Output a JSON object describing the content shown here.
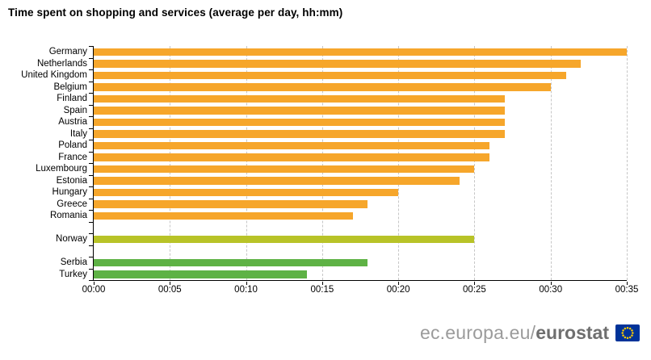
{
  "title": "Time spent on shopping and services (average per day, hh:mm)",
  "footer": {
    "url_prefix": "ec.europa.eu/",
    "brand": "eurostat",
    "flag_icon": "eu-flag-icon",
    "flag_blue": "#003399",
    "flag_star_color": "#ffcc00"
  },
  "colors": {
    "axis": "#000000",
    "grid": "#c6c6c6",
    "eu_bar": "#f6a62b",
    "efta_bar": "#b8c327",
    "candidate_bar": "#5eb245"
  },
  "chart_data": {
    "type": "bar",
    "orientation": "horizontal",
    "title": "Time spent on shopping and services (average per day, hh:mm)",
    "xlabel": "",
    "ylabel": "",
    "x_unit": "hh:mm per day",
    "xlim_minutes": [
      0,
      35
    ],
    "x_tick_step_minutes": 5,
    "x_ticks": [
      "00:00",
      "00:05",
      "00:10",
      "00:15",
      "00:20",
      "00:25",
      "00:30",
      "00:35"
    ],
    "grid": "vertical dashed",
    "legend": "none",
    "groups": [
      {
        "name": "eu-countries",
        "color": "#f6a62b",
        "rows": [
          {
            "country": "Germany",
            "minutes": 35,
            "value": "00:35"
          },
          {
            "country": "Netherlands",
            "minutes": 32,
            "value": "00:32"
          },
          {
            "country": "United Kingdom",
            "minutes": 31,
            "value": "00:31"
          },
          {
            "country": "Belgium",
            "minutes": 30,
            "value": "00:30"
          },
          {
            "country": "Finland",
            "minutes": 27,
            "value": "00:27"
          },
          {
            "country": "Spain",
            "minutes": 27,
            "value": "00:27"
          },
          {
            "country": "Austria",
            "minutes": 27,
            "value": "00:27"
          },
          {
            "country": "Italy",
            "minutes": 27,
            "value": "00:27"
          },
          {
            "country": "Poland",
            "minutes": 26,
            "value": "00:26"
          },
          {
            "country": "France",
            "minutes": 26,
            "value": "00:26"
          },
          {
            "country": "Luxembourg",
            "minutes": 25,
            "value": "00:25"
          },
          {
            "country": "Estonia",
            "minutes": 24,
            "value": "00:24"
          },
          {
            "country": "Hungary",
            "minutes": 20,
            "value": "00:20"
          },
          {
            "country": "Greece",
            "minutes": 18,
            "value": "00:18"
          },
          {
            "country": "Romania",
            "minutes": 17,
            "value": "00:17"
          }
        ]
      },
      {
        "name": "efta-countries",
        "color": "#b8c327",
        "rows": [
          {
            "country": "Norway",
            "minutes": 25,
            "value": "00:25"
          }
        ]
      },
      {
        "name": "candidate-countries",
        "color": "#5eb245",
        "rows": [
          {
            "country": "Serbia",
            "minutes": 18,
            "value": "00:18"
          },
          {
            "country": "Turkey",
            "minutes": 14,
            "value": "00:14"
          }
        ]
      }
    ]
  }
}
